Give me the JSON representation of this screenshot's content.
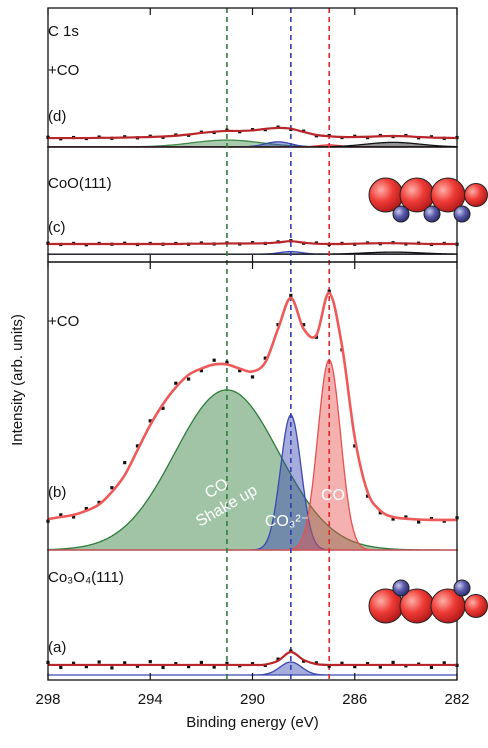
{
  "chart_data": [
    {
      "type": "line",
      "xlim": [
        298,
        282
      ],
      "ylim": [
        0,
        100
      ],
      "xticks": [
        298,
        294,
        290,
        286,
        282
      ],
      "x": [
        298,
        297.5,
        297,
        296.5,
        296,
        295.5,
        295,
        294.5,
        294,
        293.5,
        293,
        292.5,
        292,
        291.5,
        291,
        290.5,
        290,
        289.5,
        289,
        288.5,
        288,
        287.5,
        287,
        286.5,
        286,
        285.5,
        285,
        284.5,
        284,
        283.5,
        283,
        282.5,
        282
      ],
      "texts": [
        "C 1s",
        "+CO",
        "(d)",
        "CoO(111)",
        "(c)"
      ],
      "spectra": [
        {
          "data_color": "#111111",
          "fit_color": "#b8262a",
          "data": [
            49.1,
            48.5,
            49,
            48.6,
            49.2,
            48.7,
            49.3,
            48.9,
            49.5,
            49.1,
            50,
            49.9,
            51.1,
            51,
            51.9,
            51.3,
            52.1,
            52.1,
            53.1,
            52.2,
            51.5,
            49.7,
            49.8,
            49,
            49.5,
            49,
            49.8,
            49.4,
            49.8,
            48.9,
            49.3,
            48.7,
            49
          ],
          "fit": [
            48.8,
            48.8,
            48.8,
            48.8,
            48.9,
            48.9,
            49,
            49.1,
            49.2,
            49.4,
            49.7,
            50.2,
            50.8,
            51.3,
            51.6,
            51.6,
            51.8,
            52.4,
            52.8,
            52.5,
            51.2,
            50,
            49.5,
            49.2,
            49.2,
            49.3,
            49.5,
            49.6,
            49.5,
            49.2,
            49,
            48.9,
            48.8
          ],
          "baseline": 45.3,
          "components": [
            {
              "color": "#3f8a4a",
              "center": 291,
              "height": 2.7,
              "fwhm": 3.2
            },
            {
              "color": "#3a48b0",
              "center": 289,
              "height": 2,
              "fwhm": 1.2
            },
            {
              "color": "#e03a3a",
              "center": 287,
              "height": 0.8,
              "fwhm": 1
            },
            {
              "color": "#111111",
              "center": 284.5,
              "height": 1.8,
              "fwhm": 2.5
            }
          ]
        },
        {
          "data_color": "#111111",
          "fit_color": "#b8262a",
          "data": [
            7.4,
            6.9,
            7.3,
            6.8,
            7.3,
            7,
            7.4,
            6.9,
            7.3,
            7,
            7.3,
            7,
            7.5,
            7.1,
            7.5,
            7.1,
            7.6,
            7.3,
            7.9,
            8.4,
            7.4,
            7.5,
            6.9,
            7.3,
            7,
            7.5,
            7.2,
            7.6,
            7.1,
            7.4,
            6.9,
            7.3,
            7
          ],
          "fit": [
            7.1,
            7.1,
            7.1,
            7.1,
            7.1,
            7.1,
            7.1,
            7.1,
            7.1,
            7.1,
            7.1,
            7.2,
            7.2,
            7.2,
            7.3,
            7.3,
            7.3,
            7.4,
            7.7,
            8.2,
            7.6,
            7.2,
            7.1,
            7.1,
            7.2,
            7.3,
            7.4,
            7.4,
            7.3,
            7.2,
            7.1,
            7.1,
            7.1
          ],
          "baseline": 3.1,
          "components": [
            {
              "color": "#3a48b0",
              "center": 288.5,
              "height": 1,
              "fwhm": 1
            },
            {
              "color": "#111111",
              "center": 284.5,
              "height": 0.8,
              "fwhm": 2.5
            }
          ]
        }
      ]
    },
    {
      "type": "line",
      "xlim": [
        298,
        282
      ],
      "ylim": [
        0,
        100
      ],
      "xticks": [
        298,
        294,
        290,
        286,
        282
      ],
      "xlabel": "Binding energy (eV)",
      "ylabel": "Intensity (arb. units)",
      "x": [
        298,
        297.5,
        297,
        296.5,
        296,
        295.5,
        295,
        294.5,
        294,
        293.5,
        293,
        292.5,
        292,
        291.5,
        291,
        290.5,
        290,
        289.5,
        289,
        288.5,
        288,
        287.5,
        287,
        286.5,
        286,
        285.5,
        285,
        284.5,
        284,
        283.5,
        283,
        282.5,
        282
      ],
      "texts": [
        "+CO",
        "(b)",
        "Co₃O₄(111)",
        "(a)"
      ],
      "annotations": [
        {
          "lines": [
            "CO",
            "Shake up"
          ]
        },
        {
          "lines": [
            "CO₃²⁻"
          ]
        },
        {
          "lines": [
            "CO"
          ]
        }
      ],
      "reference_lines": [
        {
          "x": 291,
          "color": "#2e7d3a"
        },
        {
          "x": 288.5,
          "color": "#3040b0"
        },
        {
          "x": 287,
          "color": "#e02828"
        }
      ],
      "spectra": [
        {
          "data_color": "#111111",
          "fit_color": "#ee5a5a",
          "data": [
            38,
            39.5,
            39,
            41,
            42.5,
            46,
            52,
            56,
            62,
            65,
            71,
            72,
            74,
            76.5,
            76,
            74,
            72.5,
            77,
            85,
            92,
            85,
            82,
            93,
            79,
            56,
            44,
            40,
            38.5,
            39,
            37.8,
            38.6,
            38,
            38.8
          ],
          "fit": [
            38.5,
            39,
            39.5,
            40.5,
            42,
            45,
            49,
            55,
            61,
            66,
            70,
            73,
            74.5,
            75.5,
            75.5,
            74.5,
            73.8,
            76,
            84,
            91.4,
            84,
            82.5,
            92.6,
            80,
            58,
            45,
            40.5,
            39,
            38.6,
            38.4,
            38.3,
            38.3,
            38.3
          ],
          "baseline": 31.1,
          "components": [
            {
              "color": "#2e7d3a",
              "center": 291,
              "height": 38.3,
              "fwhm": 4.8
            },
            {
              "color": "#3a48b0",
              "center": 288.5,
              "height": 32.3,
              "fwhm": 0.95
            },
            {
              "color": "#e85050",
              "center": 287,
              "height": 45.5,
              "fwhm": 1.05
            }
          ]
        },
        {
          "data_color": "#111111",
          "fit_color": "#b8262a",
          "data": [
            4.2,
            3,
            4,
            3.2,
            4.3,
            2.9,
            4.1,
            3.3,
            4.4,
            3,
            3.9,
            3.2,
            4.2,
            3.1,
            4,
            3.4,
            3.9,
            3.5,
            5,
            6.9,
            4.5,
            4.1,
            3.3,
            4,
            3.2,
            3.9,
            3.1,
            4.2,
            3.4,
            3.8,
            3,
            4.1,
            3.5
          ],
          "fit": [
            3.6,
            3.6,
            3.6,
            3.6,
            3.6,
            3.6,
            3.6,
            3.6,
            3.6,
            3.6,
            3.6,
            3.6,
            3.6,
            3.6,
            3.6,
            3.6,
            3.6,
            3.7,
            4.6,
            6.7,
            4.8,
            3.8,
            3.6,
            3.6,
            3.6,
            3.6,
            3.6,
            3.6,
            3.6,
            3.6,
            3.6,
            3.6,
            3.6
          ],
          "baseline": 1.2,
          "components": [
            {
              "color": "#3a48b0",
              "center": 288.5,
              "height": 3.1,
              "fwhm": 1
            }
          ]
        }
      ]
    }
  ]
}
